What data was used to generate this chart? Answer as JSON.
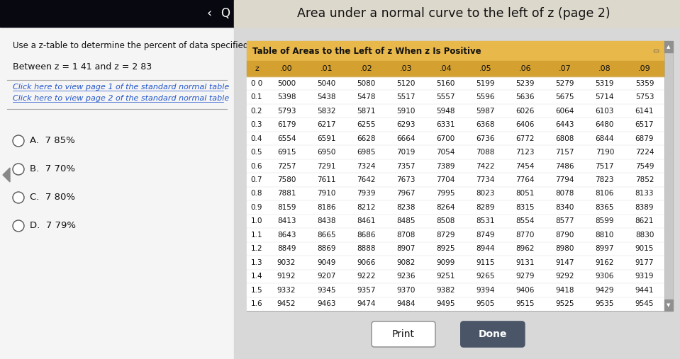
{
  "title": "Area under a normal curve to the left of z (page 2)",
  "left_title": "Use a z-table to determine the percent of data specified",
  "between_text": "Between z = 1 41 and z = 2 83",
  "link1": "Click here to view page 1 of the standard normal table",
  "link2": "Click here to view page 2 of the standard normal table",
  "options": [
    "A.  7 85%",
    "B.  7 70%",
    "C.  7 80%",
    "D.  7 79%"
  ],
  "table_title": "Table of Areas to the Left of z When z Is Positive",
  "col_headers": [
    "z",
    ".00",
    ".01",
    ".02",
    ".03",
    ".04",
    ".05",
    ".06",
    ".07",
    ".08",
    ".09"
  ],
  "table_data": [
    [
      "0 0",
      "5000",
      "5040",
      "5080",
      "5120",
      "5160",
      "5199",
      "5239",
      "5279",
      "5319",
      "5359"
    ],
    [
      "0.1",
      "5398",
      "5438",
      "5478",
      "5517",
      "5557",
      "5596",
      "5636",
      "5675",
      "5714",
      "5753"
    ],
    [
      "0.2",
      "5793",
      "5832",
      "5871",
      "5910",
      "5948",
      "5987",
      "6026",
      "6064",
      "6103",
      "6141"
    ],
    [
      "0.3",
      "6179",
      "6217",
      "6255",
      "6293",
      "6331",
      "6368",
      "6406",
      "6443",
      "6480",
      "6517"
    ],
    [
      "0.4",
      "6554",
      "6591",
      "6628",
      "6664",
      "6700",
      "6736",
      "6772",
      "6808",
      "6844",
      "6879"
    ],
    [
      "0.5",
      "6915",
      "6950",
      "6985",
      "7019",
      "7054",
      "7088",
      "7123",
      "7157",
      "7190",
      "7224"
    ],
    [
      "0.6",
      "7257",
      "7291",
      "7324",
      "7357",
      "7389",
      "7422",
      "7454",
      "7486",
      "7517",
      "7549"
    ],
    [
      "0.7",
      "7580",
      "7611",
      "7642",
      "7673",
      "7704",
      "7734",
      "7764",
      "7794",
      "7823",
      "7852"
    ],
    [
      "0.8",
      "7881",
      "7910",
      "7939",
      "7967",
      "7995",
      "8023",
      "8051",
      "8078",
      "8106",
      "8133"
    ],
    [
      "0.9",
      "8159",
      "8186",
      "8212",
      "8238",
      "8264",
      "8289",
      "8315",
      "8340",
      "8365",
      "8389"
    ],
    [
      "1.0",
      "8413",
      "8438",
      "8461",
      "8485",
      "8508",
      "8531",
      "8554",
      "8577",
      "8599",
      "8621"
    ],
    [
      "1.1",
      "8643",
      "8665",
      "8686",
      "8708",
      "8729",
      "8749",
      "8770",
      "8790",
      "8810",
      "8830"
    ],
    [
      "1.2",
      "8849",
      "8869",
      "8888",
      "8907",
      "8925",
      "8944",
      "8962",
      "8980",
      "8997",
      "9015"
    ],
    [
      "1.3",
      "9032",
      "9049",
      "9066",
      "9082",
      "9099",
      "9115",
      "9131",
      "9147",
      "9162",
      "9177"
    ],
    [
      "1.4",
      "9192",
      "9207",
      "9222",
      "9236",
      "9251",
      "9265",
      "9279",
      "9292",
      "9306",
      "9319"
    ],
    [
      "1.5",
      "9332",
      "9345",
      "9357",
      "9370",
      "9382",
      "9394",
      "9406",
      "9418",
      "9429",
      "9441"
    ],
    [
      "1.6",
      "9452",
      "9463",
      "9474",
      "9484",
      "9495",
      "9505",
      "9515",
      "9525",
      "9535",
      "9545"
    ]
  ],
  "topbar_color": "#1a1a2e",
  "left_bg": "#f0f0f0",
  "right_bg": "#e8e8e8",
  "table_panel_bg": "#ffffff",
  "table_title_bg": "#f0c060",
  "table_header_bg": "#c8a050",
  "table_row_bg": "#ffffff",
  "scrollbar_color": "#909090",
  "btn_print_bg": "#ffffff",
  "btn_done_bg": "#4a5568"
}
